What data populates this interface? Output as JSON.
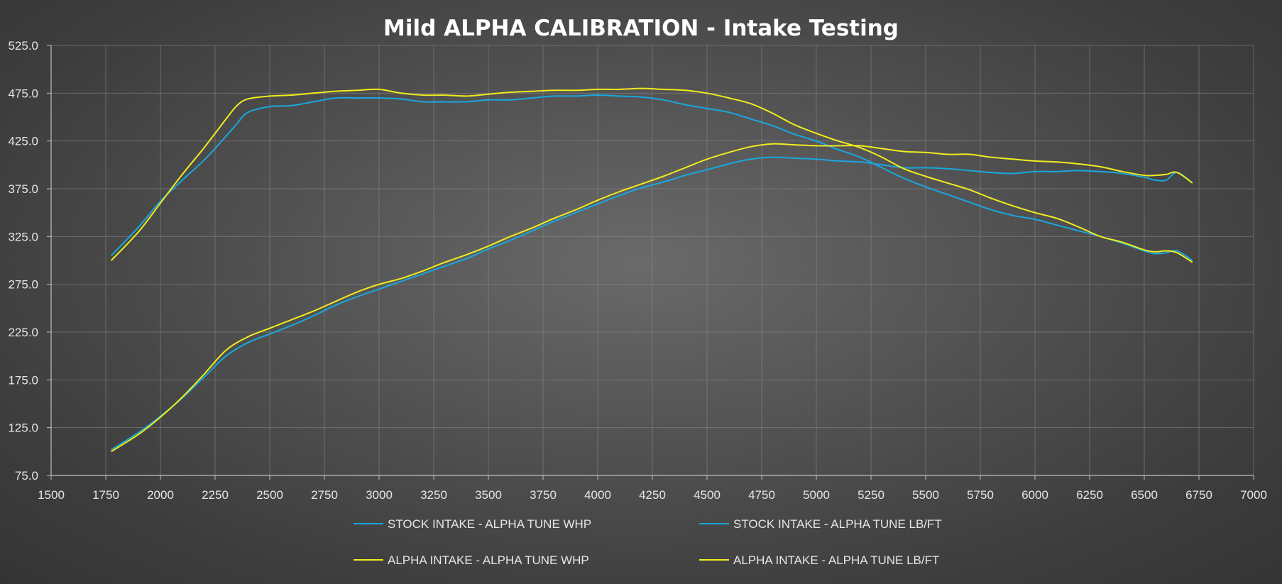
{
  "chart_data": {
    "type": "line",
    "title": "Mild ALPHA CALIBRATION - Intake Testing",
    "xlim": [
      1500,
      7000
    ],
    "ylim": [
      75,
      525
    ],
    "x_ticks": [
      1500,
      1750,
      2000,
      2250,
      2500,
      2750,
      3000,
      3250,
      3500,
      3750,
      4000,
      4250,
      4500,
      4750,
      5000,
      5250,
      5500,
      5750,
      6000,
      6250,
      6500,
      6750,
      7000
    ],
    "x_tick_labels": [
      "1500",
      "1750",
      "2000",
      "2250",
      "2500",
      "2750",
      "3000",
      "3250",
      "3500",
      "3750",
      "4000",
      "4250",
      "4500",
      "4750",
      "5000",
      "5250",
      "5500",
      "5750",
      "6000",
      "6250",
      "6500",
      "6750",
      "7000"
    ],
    "y_ticks": [
      75,
      125,
      175,
      225,
      275,
      325,
      375,
      425,
      475,
      525
    ],
    "y_tick_labels": [
      "75.0",
      "125.0",
      "175.0",
      "225.0",
      "275.0",
      "325.0",
      "375.0",
      "425.0",
      "475.0",
      "525.0"
    ],
    "grid": true,
    "legend_position": "bottom",
    "series": [
      {
        "name": "STOCK INTAKE - ALPHA TUNE WHP",
        "color": "#1aa7dd",
        "x": [
          1775,
          1900,
          2000,
          2100,
          2200,
          2300,
          2400,
          2500,
          2600,
          2700,
          2800,
          2900,
          3000,
          3100,
          3200,
          3300,
          3400,
          3500,
          3600,
          3700,
          3800,
          3900,
          4000,
          4100,
          4200,
          4300,
          4400,
          4500,
          4600,
          4700,
          4800,
          4900,
          5000,
          5100,
          5200,
          5300,
          5400,
          5500,
          5600,
          5700,
          5800,
          5900,
          6000,
          6100,
          6200,
          6300,
          6400,
          6500,
          6550,
          6600,
          6650,
          6720
        ],
        "y": [
          102,
          120,
          137,
          156,
          178,
          200,
          214,
          223,
          232,
          242,
          253,
          262,
          270,
          278,
          286,
          294,
          302,
          312,
          321,
          331,
          341,
          350,
          359,
          368,
          376,
          382,
          389,
          395,
          401,
          406,
          408,
          407,
          406,
          404,
          403,
          400,
          397,
          397,
          396,
          394,
          392,
          391,
          393,
          393,
          394,
          393,
          391,
          387,
          384,
          384,
          392,
          381
        ]
      },
      {
        "name": "STOCK INTAKE - ALPHA TUNE LB/FT",
        "color": "#1aa7dd",
        "x": [
          1775,
          1900,
          2000,
          2100,
          2200,
          2300,
          2350,
          2400,
          2500,
          2600,
          2700,
          2800,
          2900,
          3000,
          3100,
          3200,
          3300,
          3400,
          3500,
          3600,
          3700,
          3800,
          3900,
          4000,
          4100,
          4200,
          4300,
          4400,
          4500,
          4600,
          4700,
          4800,
          4900,
          5000,
          5100,
          5200,
          5300,
          5400,
          5500,
          5600,
          5700,
          5800,
          5900,
          6000,
          6100,
          6200,
          6300,
          6400,
          6500,
          6550,
          6600,
          6650,
          6720
        ],
        "y": [
          305,
          335,
          362,
          384,
          405,
          430,
          443,
          455,
          461,
          462,
          466,
          470,
          470,
          470,
          469,
          466,
          466,
          466,
          468,
          468,
          470,
          472,
          472,
          473,
          472,
          471,
          468,
          463,
          459,
          455,
          448,
          441,
          432,
          425,
          416,
          408,
          397,
          386,
          377,
          369,
          361,
          353,
          347,
          343,
          337,
          331,
          325,
          318,
          310,
          307,
          308,
          310,
          300
        ]
      },
      {
        "name": "ALPHA INTAKE - ALPHA TUNE WHP",
        "color": "#f0ec1e",
        "x": [
          1775,
          1900,
          2000,
          2100,
          2200,
          2300,
          2400,
          2500,
          2600,
          2700,
          2800,
          2900,
          3000,
          3100,
          3200,
          3300,
          3400,
          3500,
          3600,
          3700,
          3800,
          3900,
          4000,
          4100,
          4200,
          4300,
          4400,
          4500,
          4600,
          4700,
          4800,
          4900,
          5000,
          5100,
          5200,
          5300,
          5400,
          5500,
          5600,
          5700,
          5800,
          5900,
          6000,
          6100,
          6200,
          6300,
          6400,
          6500,
          6550,
          6600,
          6650,
          6720
        ],
        "y": [
          100,
          118,
          136,
          157,
          181,
          206,
          220,
          229,
          238,
          247,
          257,
          267,
          275,
          281,
          289,
          298,
          306,
          315,
          325,
          334,
          344,
          353,
          363,
          372,
          380,
          388,
          397,
          406,
          413,
          419,
          422,
          421,
          420,
          420,
          420,
          417,
          414,
          413,
          411,
          411,
          408,
          406,
          404,
          403,
          401,
          398,
          393,
          389,
          389,
          390,
          392,
          381
        ]
      },
      {
        "name": "ALPHA INTAKE - ALPHA TUNE LB/FT",
        "color": "#f0ec1e",
        "x": [
          1775,
          1900,
          2000,
          2100,
          2200,
          2300,
          2350,
          2400,
          2500,
          2600,
          2700,
          2800,
          2900,
          3000,
          3100,
          3200,
          3300,
          3400,
          3500,
          3600,
          3700,
          3800,
          3900,
          4000,
          4100,
          4200,
          4300,
          4400,
          4500,
          4600,
          4700,
          4800,
          4900,
          5000,
          5100,
          5200,
          5300,
          5400,
          5500,
          5600,
          5700,
          5800,
          5900,
          6000,
          6100,
          6200,
          6300,
          6400,
          6500,
          6550,
          6600,
          6650,
          6720
        ],
        "y": [
          300,
          330,
          360,
          390,
          418,
          448,
          462,
          469,
          472,
          473,
          475,
          477,
          478,
          479,
          475,
          473,
          473,
          472,
          474,
          476,
          477,
          478,
          478,
          479,
          479,
          480,
          479,
          478,
          475,
          470,
          464,
          454,
          442,
          433,
          425,
          418,
          408,
          396,
          388,
          381,
          374,
          365,
          357,
          350,
          344,
          335,
          325,
          319,
          311,
          309,
          310,
          308,
          298
        ]
      }
    ]
  }
}
